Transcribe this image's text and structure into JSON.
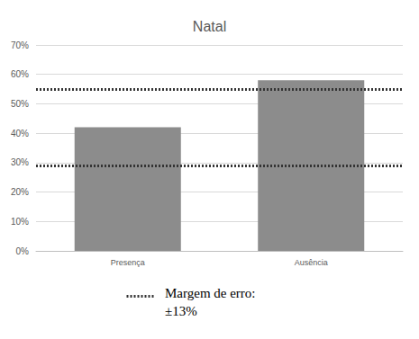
{
  "chart_data": {
    "type": "bar",
    "title": "Natal",
    "categories": [
      "Presença",
      "Ausência"
    ],
    "values": [
      42,
      58
    ],
    "color": "#8c8c8c",
    "ylim": [
      0,
      70
    ],
    "yticks": [
      {
        "value": 0,
        "label": "0%"
      },
      {
        "value": 10,
        "label": "10%"
      },
      {
        "value": 20,
        "label": "20%"
      },
      {
        "value": 30,
        "label": "30%"
      },
      {
        "value": 40,
        "label": "40%"
      },
      {
        "value": 50,
        "label": "50%"
      },
      {
        "value": 60,
        "label": "60%"
      },
      {
        "value": 70,
        "label": "70%"
      }
    ],
    "grid": true,
    "reference_lines": [
      55,
      29
    ],
    "annotation": [
      "Margem de erro:",
      "±13%"
    ]
  }
}
